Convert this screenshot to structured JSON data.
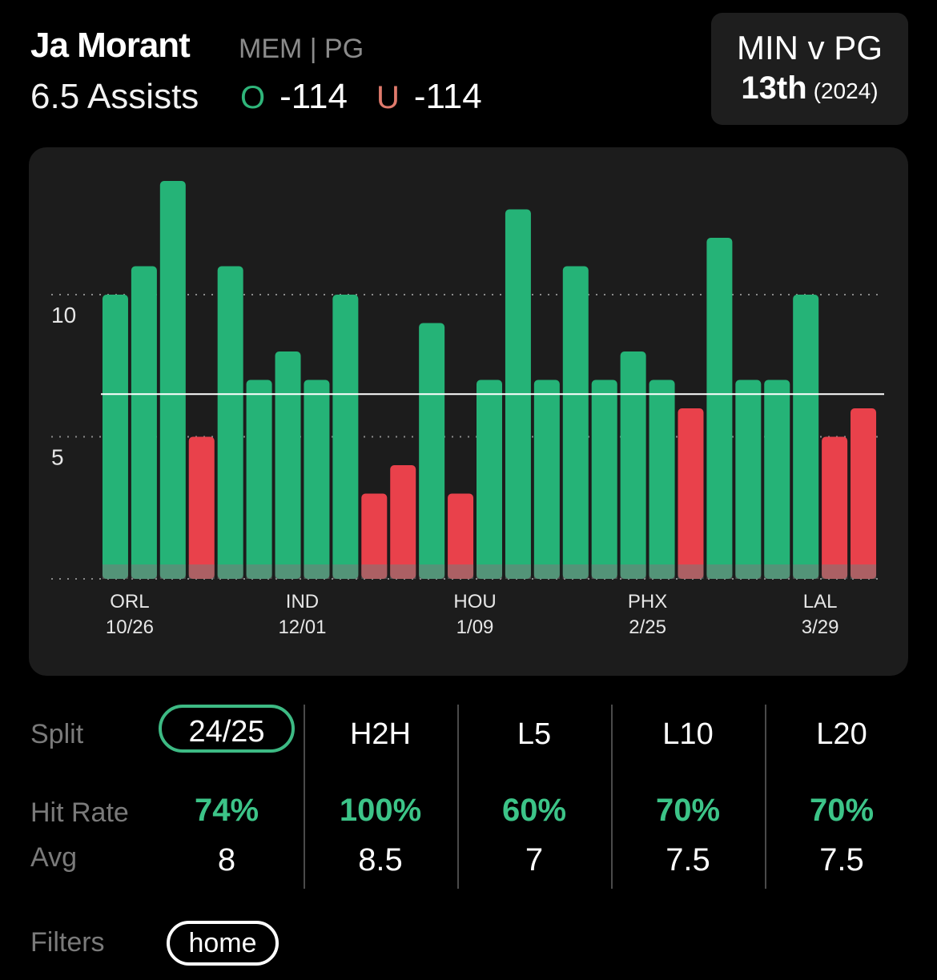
{
  "header": {
    "player_name": "Ja Morant",
    "player_meta": "MEM | PG",
    "prop": "6.5 Assists",
    "over": {
      "mark": "O",
      "odds": "-114"
    },
    "under": {
      "mark": "U",
      "odds": "-114"
    }
  },
  "matchup": {
    "title": "MIN v PG",
    "rank": "13th",
    "year": "(2024)"
  },
  "colors": {
    "hit": "#25b377",
    "miss": "#e9414b",
    "line": "#ffffff",
    "card_bg": "#1c1c1c",
    "accent": "#3dba84"
  },
  "chart_data": {
    "type": "bar",
    "line_value": 6.5,
    "ylim": [
      0,
      14
    ],
    "yticks": [
      5,
      10
    ],
    "grid": "dotted",
    "values": [
      10,
      11,
      14,
      5,
      11,
      7,
      8,
      7,
      10,
      3,
      4,
      9,
      3,
      7,
      13,
      7,
      11,
      7,
      8,
      7,
      6,
      12,
      7,
      7,
      10,
      5,
      6
    ],
    "x_labels": [
      {
        "index": 0.5,
        "team": "ORL",
        "date": "10/26"
      },
      {
        "index": 6.5,
        "team": "IND",
        "date": "12/01"
      },
      {
        "index": 12.5,
        "team": "HOU",
        "date": "1/09"
      },
      {
        "index": 18.5,
        "team": "PHX",
        "date": "2/25"
      },
      {
        "index": 24.5,
        "team": "LAL",
        "date": "3/29"
      }
    ]
  },
  "stats": {
    "row_labels": {
      "split": "Split",
      "hit_rate": "Hit Rate",
      "avg": "Avg"
    },
    "columns": [
      {
        "label": "24/25",
        "hit_rate": "74%",
        "avg": "8",
        "selected": true
      },
      {
        "label": "H2H",
        "hit_rate": "100%",
        "avg": "8.5",
        "selected": false
      },
      {
        "label": "L5",
        "hit_rate": "60%",
        "avg": "7",
        "selected": false
      },
      {
        "label": "L10",
        "hit_rate": "70%",
        "avg": "7.5",
        "selected": false
      },
      {
        "label": "L20",
        "hit_rate": "70%",
        "avg": "7.5",
        "selected": false
      }
    ]
  },
  "filters": {
    "label": "Filters",
    "active": "home"
  }
}
